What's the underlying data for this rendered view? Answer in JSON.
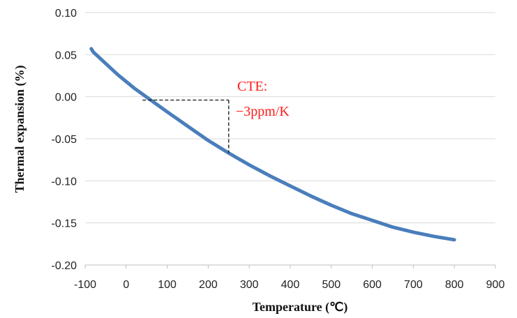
{
  "chart_data": {
    "type": "line",
    "xlabel": "Temperature (℃)",
    "ylabel": "Thermal expansion (%)",
    "xlim": [
      -100,
      900
    ],
    "ylim": [
      -0.2,
      0.1
    ],
    "x_ticks": [
      "-100",
      "0",
      "100",
      "200",
      "300",
      "400",
      "500",
      "600",
      "700",
      "800",
      "900"
    ],
    "y_ticks": [
      "0.10",
      "0.05",
      "0.00",
      "-0.05",
      "-0.10",
      "-0.15",
      "-0.20"
    ],
    "grid": "horizontal",
    "legend": "none",
    "series": [
      {
        "color": "#4a7ebb",
        "x": [
          -85,
          -80,
          -60,
          -40,
          -20,
          0,
          20,
          40,
          60,
          80,
          100,
          150,
          200,
          250,
          300,
          350,
          400,
          450,
          500,
          550,
          600,
          650,
          700,
          750,
          800
        ],
        "y": [
          0.057,
          0.053,
          0.044,
          0.035,
          0.026,
          0.018,
          0.01,
          0.003,
          -0.004,
          -0.011,
          -0.018,
          -0.035,
          -0.052,
          -0.067,
          -0.081,
          -0.094,
          -0.106,
          -0.118,
          -0.129,
          -0.139,
          -0.147,
          -0.155,
          -0.161,
          -0.166,
          -0.17
        ]
      }
    ],
    "annotation": {
      "line1": "CTE:",
      "line2": "−3ppm/K",
      "color": "#ff1a1a",
      "guide": {
        "x_start": 40,
        "x_end": 250,
        "y_top": -0.004,
        "y_bottom": -0.067
      }
    }
  }
}
